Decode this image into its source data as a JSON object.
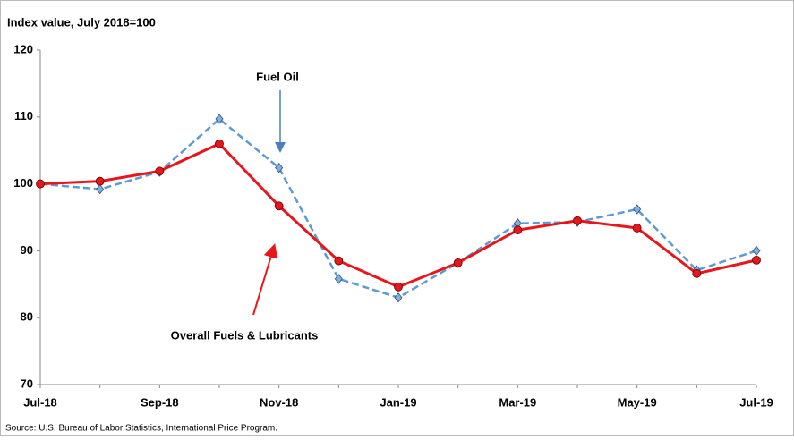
{
  "chart_data": {
    "type": "line",
    "y_label": "Index value, July 2018=100",
    "source": "Source: U.S. Bureau of Labor Statistics, International Price Program.",
    "annotations": [
      "Fuel Oil",
      "Overall Fuels & Lubricants"
    ],
    "categories": [
      "Jul-18",
      null,
      "Sep-18",
      null,
      "Nov-18",
      null,
      "Jan-19",
      null,
      "Mar-19",
      null,
      "May-19",
      null,
      "Jul-19"
    ],
    "series": [
      {
        "name": "Fuel Oil",
        "color": "#5b9bd5",
        "values": [
          100,
          99.2,
          101.8,
          109.7,
          102.4,
          85.8,
          83.0,
          88.2,
          94.1,
          94.3,
          96.2,
          87.1,
          90.0
        ]
      },
      {
        "name": "Overall Fuels & Lubricants",
        "color": "#e8161b",
        "values": [
          100,
          100.4,
          101.9,
          106.0,
          96.7,
          88.5,
          84.6,
          88.2,
          93.1,
          94.5,
          93.4,
          86.6,
          88.6
        ]
      }
    ],
    "ylim": [
      70,
      120
    ],
    "yticks": [
      70,
      80,
      90,
      100,
      110,
      120
    ],
    "grid": false
  }
}
